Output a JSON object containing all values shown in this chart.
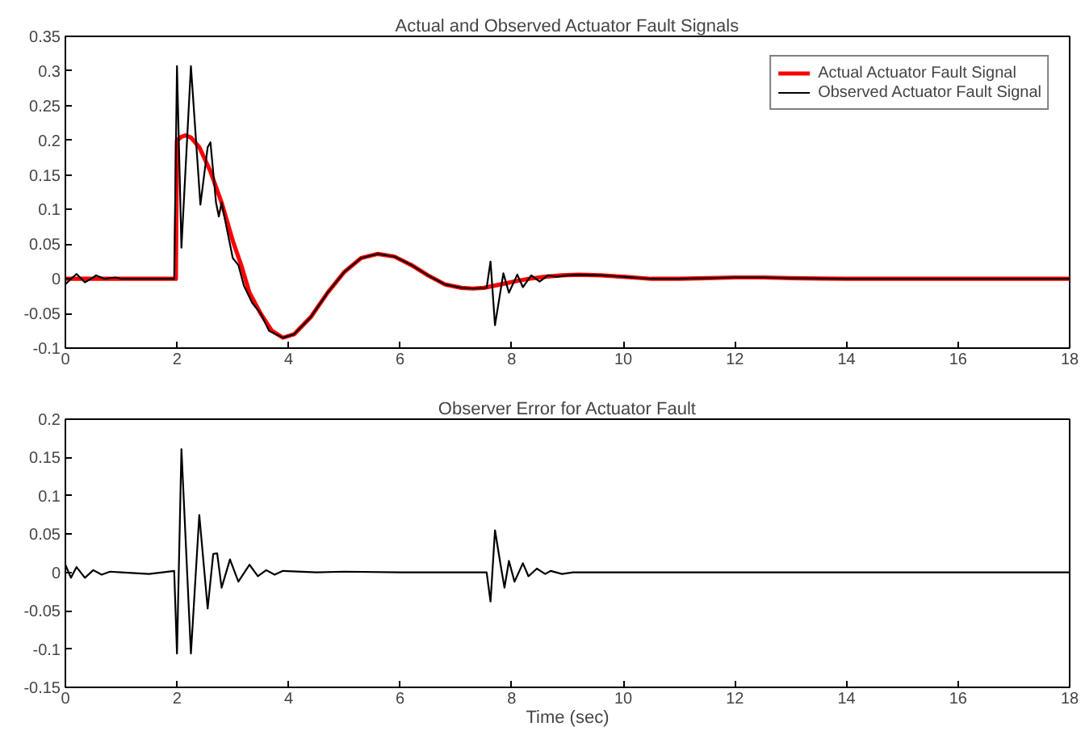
{
  "chart_data": [
    {
      "type": "line",
      "title": "Actual and Observed Actuator Fault Signals",
      "xlim": [
        0,
        18
      ],
      "ylim": [
        -0.1,
        0.35
      ],
      "xticks": [
        0,
        2,
        4,
        6,
        8,
        10,
        12,
        14,
        16,
        18
      ],
      "yticks": [
        -0.1,
        -0.05,
        0,
        0.05,
        0.1,
        0.15,
        0.2,
        0.25,
        0.3,
        0.35
      ],
      "grid": false,
      "legend": "top right",
      "series": [
        {
          "name": "Actual Actuator Fault Signal",
          "color": "#ff0000",
          "x": [
            0,
            1,
            1.98,
            2.0,
            2.08,
            2.15,
            2.25,
            2.4,
            2.6,
            2.8,
            3.0,
            3.15,
            3.3,
            3.5,
            3.7,
            3.9,
            4.1,
            4.4,
            4.7,
            5.0,
            5.3,
            5.6,
            5.9,
            6.2,
            6.5,
            6.8,
            7.1,
            7.3,
            7.5,
            7.8,
            8.1,
            8.3,
            8.6,
            8.9,
            9.2,
            9.6,
            10.0,
            10.5,
            11.0,
            11.5,
            12.0,
            12.5,
            13.0,
            14.0,
            15.0,
            16.0,
            17.0,
            18.0
          ],
          "values": [
            0,
            0,
            0,
            0.2,
            0.205,
            0.207,
            0.204,
            0.19,
            0.155,
            0.11,
            0.055,
            0.02,
            -0.02,
            -0.05,
            -0.075,
            -0.085,
            -0.08,
            -0.055,
            -0.02,
            0.01,
            0.03,
            0.036,
            0.032,
            0.02,
            0.005,
            -0.008,
            -0.013,
            -0.014,
            -0.013,
            -0.008,
            -0.003,
            0,
            0.003,
            0.005,
            0.006,
            0.005,
            0.003,
            0,
            0,
            0.001,
            0.002,
            0.002,
            0.001,
            0,
            0,
            0,
            0,
            0
          ]
        },
        {
          "name": "Observed Actuator Fault Signal",
          "color": "#000000",
          "x": [
            0,
            0.1,
            0.2,
            0.35,
            0.5,
            0.55,
            0.7,
            0.9,
            1.0,
            1.5,
            1.95,
            2.0,
            2.08,
            2.25,
            2.42,
            2.55,
            2.6,
            2.7,
            2.75,
            2.8,
            2.9,
            3.0,
            3.1,
            3.2,
            3.35,
            3.5,
            3.65,
            3.9,
            4.1,
            4.4,
            4.7,
            5.0,
            5.3,
            5.6,
            5.9,
            6.2,
            6.5,
            6.8,
            7.1,
            7.3,
            7.55,
            7.62,
            7.7,
            7.85,
            7.95,
            8.1,
            8.2,
            8.35,
            8.5,
            8.65,
            8.8,
            9.0,
            9.2,
            9.6,
            10.0,
            10.5,
            11.0,
            11.5,
            12.0,
            12.5,
            13.0,
            14.0,
            15.0,
            16.0,
            17.0,
            18.0
          ],
          "values": [
            -0.008,
            0,
            0.007,
            -0.005,
            0.002,
            0.005,
            0,
            0.002,
            0,
            0,
            0,
            0.307,
            0.045,
            0.307,
            0.107,
            0.19,
            0.197,
            0.11,
            0.09,
            0.11,
            0.07,
            0.03,
            0.02,
            -0.01,
            -0.035,
            -0.05,
            -0.075,
            -0.085,
            -0.08,
            -0.055,
            -0.02,
            0.01,
            0.03,
            0.036,
            0.032,
            0.02,
            0.005,
            -0.008,
            -0.013,
            -0.014,
            -0.013,
            0.025,
            -0.067,
            0.008,
            -0.02,
            0.006,
            -0.012,
            0.005,
            -0.004,
            0.005,
            0.003,
            0.005,
            0.006,
            0.005,
            0.003,
            0,
            0,
            0.001,
            0.002,
            0.002,
            0.001,
            0,
            0,
            0,
            0,
            0
          ]
        }
      ]
    },
    {
      "type": "line",
      "title": "Observer Error for Actuator Fault",
      "xlabel": "Time (sec)",
      "xlim": [
        0,
        18
      ],
      "ylim": [
        -0.15,
        0.2
      ],
      "xticks": [
        0,
        2,
        4,
        6,
        8,
        10,
        12,
        14,
        16,
        18
      ],
      "yticks": [
        -0.15,
        -0.1,
        -0.05,
        0,
        0.05,
        0.1,
        0.15,
        0.2
      ],
      "grid": false,
      "series": [
        {
          "color": "#000000",
          "x": [
            0,
            0.1,
            0.2,
            0.35,
            0.5,
            0.65,
            0.8,
            1.0,
            1.5,
            1.95,
            2.0,
            2.08,
            2.25,
            2.4,
            2.55,
            2.65,
            2.72,
            2.8,
            2.95,
            3.1,
            3.3,
            3.45,
            3.6,
            3.75,
            3.9,
            4.5,
            5.0,
            6.0,
            7.0,
            7.55,
            7.62,
            7.7,
            7.8,
            7.87,
            7.95,
            8.05,
            8.2,
            8.3,
            8.45,
            8.6,
            8.7,
            8.9,
            9.1,
            10.0,
            12.0,
            14.0,
            16.0,
            18.0
          ],
          "values": [
            0.01,
            -0.007,
            0.007,
            -0.007,
            0.003,
            -0.003,
            0.001,
            0,
            -0.002,
            0.002,
            -0.106,
            0.161,
            -0.106,
            0.075,
            -0.047,
            0.024,
            0.025,
            -0.02,
            0.017,
            -0.012,
            0.01,
            -0.005,
            0.003,
            -0.003,
            0.002,
            0,
            0.001,
            0,
            0,
            0,
            -0.038,
            0.055,
            0.01,
            -0.02,
            0.015,
            -0.012,
            0.012,
            -0.005,
            0.005,
            -0.002,
            0.002,
            -0.002,
            0,
            0,
            0,
            0,
            0,
            0
          ]
        }
      ]
    }
  ]
}
